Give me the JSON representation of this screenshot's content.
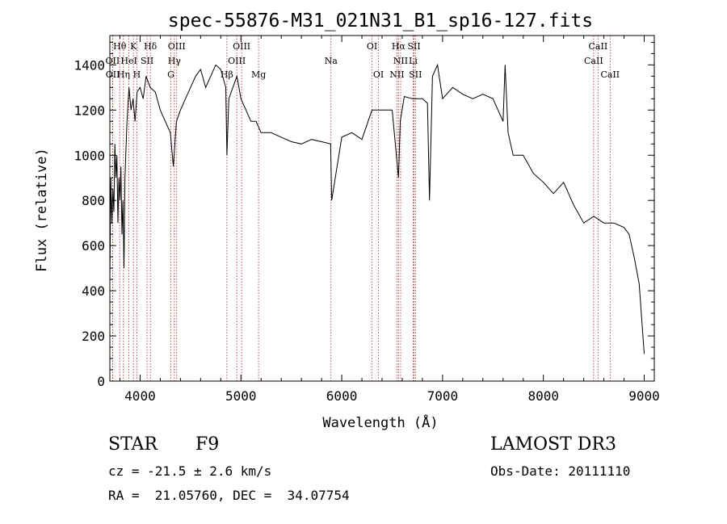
{
  "chart_data": {
    "type": "line",
    "title": "spec-55876-M31_021N31_B1_sp16-127.fits",
    "xlabel": "Wavelength (Å)",
    "ylabel": "Flux (relative)",
    "xlim": [
      3700,
      9100
    ],
    "ylim": [
      0,
      1530
    ],
    "x_ticks": [
      4000,
      5000,
      6000,
      7000,
      8000,
      9000
    ],
    "y_ticks": [
      0,
      200,
      400,
      600,
      800,
      1000,
      1200,
      1400
    ],
    "grid": false,
    "series": [
      {
        "x": [
          3700,
          3710,
          3720,
          3730,
          3740,
          3750,
          3760,
          3770,
          3780,
          3790,
          3800,
          3810,
          3820,
          3830,
          3840,
          3850,
          3870,
          3890,
          3910,
          3930,
          3950,
          3970,
          4000,
          4030,
          4060,
          4100,
          4150,
          4200,
          4250,
          4300,
          4330,
          4360,
          4400,
          4450,
          4500,
          4550,
          4600,
          4650,
          4700,
          4750,
          4800,
          4850,
          4861,
          4880,
          4920,
          4960,
          5000,
          5050,
          5100,
          5150,
          5200,
          5300,
          5400,
          5500,
          5600,
          5700,
          5800,
          5890,
          5900,
          6000,
          6100,
          6200,
          6300,
          6400,
          6500,
          6563,
          6580,
          6620,
          6700,
          6800,
          6850,
          6870,
          6900,
          6950,
          7000,
          7100,
          7200,
          7300,
          7400,
          7500,
          7550,
          7600,
          7620,
          7650,
          7700,
          7800,
          7900,
          8000,
          8100,
          8200,
          8300,
          8400,
          8500,
          8600,
          8700,
          8800,
          8850,
          8900,
          8950,
          9000
        ],
        "y": [
          450,
          900,
          700,
          850,
          750,
          1050,
          900,
          1000,
          700,
          900,
          800,
          950,
          650,
          800,
          500,
          900,
          1150,
          1300,
          1200,
          1250,
          1150,
          1280,
          1300,
          1250,
          1350,
          1300,
          1280,
          1200,
          1150,
          1100,
          950,
          1150,
          1200,
          1250,
          1300,
          1350,
          1380,
          1300,
          1350,
          1400,
          1380,
          1300,
          1000,
          1250,
          1300,
          1350,
          1250,
          1200,
          1150,
          1150,
          1100,
          1100,
          1080,
          1060,
          1050,
          1070,
          1060,
          1050,
          800,
          1080,
          1100,
          1070,
          1200,
          1200,
          1200,
          900,
          1150,
          1260,
          1250,
          1250,
          1230,
          800,
          1350,
          1400,
          1250,
          1300,
          1270,
          1250,
          1270,
          1250,
          1200,
          1150,
          1400,
          1100,
          1000,
          1000,
          920,
          880,
          830,
          880,
          780,
          700,
          730,
          700,
          700,
          680,
          650,
          550,
          430,
          120
        ]
      }
    ],
    "lines": [
      {
        "label": "Hθ",
        "wl": 3798,
        "row": 0
      },
      {
        "label": "OII",
        "wl": 3727,
        "row": 1
      },
      {
        "label": "OII",
        "wl": 3729,
        "row": 2
      },
      {
        "label": "Hη",
        "wl": 3835,
        "row": 2
      },
      {
        "label": "HeI",
        "wl": 3889,
        "row": 1
      },
      {
        "label": "K",
        "wl": 3934,
        "row": 0
      },
      {
        "label": "SII",
        "wl": 4069,
        "row": 1
      },
      {
        "label": "H",
        "wl": 3968,
        "row": 2
      },
      {
        "label": "Hδ",
        "wl": 4102,
        "row": 0
      },
      {
        "label": "OIII",
        "wl": 4363,
        "row": 0
      },
      {
        "label": "Hγ",
        "wl": 4340,
        "row": 1
      },
      {
        "label": "G",
        "wl": 4305,
        "row": 2
      },
      {
        "label": "Hβ",
        "wl": 4861,
        "row": 2
      },
      {
        "label": "OIII",
        "wl": 5007,
        "row": 0
      },
      {
        "label": "OIII",
        "wl": 4959,
        "row": 1
      },
      {
        "label": "Mg",
        "wl": 5175,
        "row": 2
      },
      {
        "label": "Na",
        "wl": 5893,
        "row": 1
      },
      {
        "label": "OI",
        "wl": 6300,
        "row": 0
      },
      {
        "label": "OI",
        "wl": 6364,
        "row": 2
      },
      {
        "label": "Hα",
        "wl": 6563,
        "row": 0
      },
      {
        "label": "SII",
        "wl": 6717,
        "row": 0
      },
      {
        "label": "NII",
        "wl": 6584,
        "row": 1
      },
      {
        "label": "Li",
        "wl": 6708,
        "row": 1
      },
      {
        "label": "NII",
        "wl": 6548,
        "row": 2
      },
      {
        "label": "SII",
        "wl": 6731,
        "row": 2
      },
      {
        "label": "CaII",
        "wl": 8542,
        "row": 0
      },
      {
        "label": "CaII",
        "wl": 8498,
        "row": 1
      },
      {
        "label": "CaII",
        "wl": 8662,
        "row": 2
      }
    ]
  },
  "info": {
    "class_label": "STAR",
    "subclass": "F9",
    "survey": "LAMOST DR3",
    "redshift": "cz = -21.5 ± 2.6 km/s",
    "obs_date": "Obs-Date: 20111110",
    "coords": "RA =  21.05760, DEC =  34.07754"
  }
}
